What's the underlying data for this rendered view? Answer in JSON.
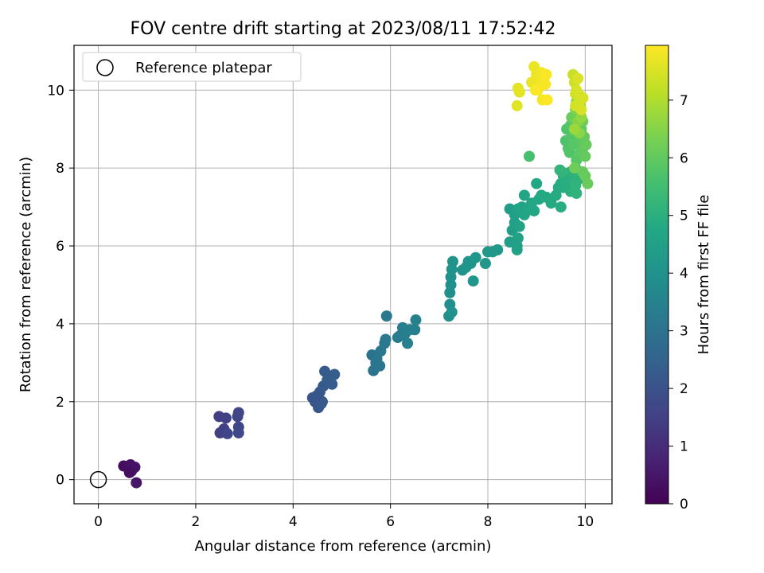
{
  "chart_data": {
    "type": "scatter",
    "title": "FOV centre drift starting at 2023/08/11 17:52:42",
    "xlabel": "Angular distance from reference (arcmin)",
    "ylabel": "Rotation from reference (arcmin)",
    "xlim": [
      -0.5,
      10.55
    ],
    "ylim": [
      -0.62,
      11.15
    ],
    "xticks": [
      0,
      2,
      4,
      6,
      8,
      10
    ],
    "yticks": [
      0,
      2,
      4,
      6,
      8,
      10
    ],
    "grid": true,
    "legend": {
      "placement": "top-left",
      "entries": [
        "Reference platepar"
      ]
    },
    "reference_point": {
      "x": 0,
      "y": 0
    },
    "colorbar": {
      "label": "Hours from first FF file",
      "colormap": "viridis",
      "range": [
        0,
        7.95
      ],
      "ticks": [
        0,
        1,
        2,
        3,
        4,
        5,
        6,
        7
      ]
    },
    "points": [
      [
        0.52,
        0.35,
        0.25
      ],
      [
        0.58,
        0.33,
        0.28
      ],
      [
        0.62,
        0.3,
        0.32
      ],
      [
        0.66,
        0.38,
        0.35
      ],
      [
        0.68,
        0.22,
        0.38
      ],
      [
        0.7,
        0.28,
        0.4
      ],
      [
        0.75,
        0.32,
        0.42
      ],
      [
        0.78,
        -0.08,
        0.45
      ],
      [
        0.64,
        0.18,
        0.3
      ],
      [
        2.48,
        1.62,
        1.45
      ],
      [
        2.5,
        1.2,
        1.5
      ],
      [
        2.58,
        1.3,
        1.52
      ],
      [
        2.62,
        1.58,
        1.55
      ],
      [
        2.65,
        1.18,
        1.58
      ],
      [
        2.86,
        1.62,
        1.62
      ],
      [
        2.88,
        1.72,
        1.65
      ],
      [
        2.88,
        1.35,
        1.68
      ],
      [
        2.88,
        1.2,
        1.7
      ],
      [
        4.4,
        2.1,
        2.05
      ],
      [
        4.45,
        2.0,
        2.08
      ],
      [
        4.5,
        2.05,
        2.1
      ],
      [
        4.52,
        1.85,
        2.12
      ],
      [
        4.55,
        2.25,
        2.15
      ],
      [
        4.58,
        1.95,
        2.18
      ],
      [
        4.6,
        2.0,
        2.2
      ],
      [
        4.62,
        2.4,
        2.22
      ],
      [
        4.65,
        2.78,
        2.25
      ],
      [
        4.7,
        2.55,
        2.28
      ],
      [
        4.75,
        2.65,
        2.3
      ],
      [
        4.8,
        2.45,
        2.32
      ],
      [
        4.85,
        2.7,
        2.35
      ],
      [
        4.48,
        2.15,
        2.12
      ],
      [
        5.62,
        3.2,
        3.0
      ],
      [
        5.65,
        2.8,
        3.05
      ],
      [
        5.7,
        3.0,
        3.08
      ],
      [
        5.72,
        3.1,
        3.1
      ],
      [
        5.78,
        2.92,
        3.12
      ],
      [
        5.8,
        3.3,
        3.15
      ],
      [
        5.88,
        3.5,
        3.18
      ],
      [
        5.9,
        3.6,
        3.2
      ],
      [
        5.92,
        4.2,
        3.22
      ],
      [
        6.15,
        3.65,
        3.3
      ],
      [
        6.2,
        3.7,
        3.32
      ],
      [
        6.25,
        3.9,
        3.35
      ],
      [
        6.3,
        3.75,
        3.38
      ],
      [
        6.35,
        3.5,
        3.4
      ],
      [
        6.4,
        3.85,
        3.42
      ],
      [
        6.5,
        3.85,
        3.45
      ],
      [
        6.52,
        4.1,
        3.48
      ],
      [
        7.2,
        4.2,
        3.9
      ],
      [
        7.22,
        4.5,
        3.92
      ],
      [
        7.22,
        4.8,
        3.94
      ],
      [
        7.24,
        5.0,
        3.96
      ],
      [
        7.24,
        5.2,
        3.98
      ],
      [
        7.26,
        4.3,
        4.0
      ],
      [
        7.26,
        5.4,
        4.02
      ],
      [
        7.28,
        5.6,
        4.04
      ],
      [
        7.48,
        5.38,
        4.06
      ],
      [
        7.55,
        5.45,
        4.08
      ],
      [
        7.6,
        5.6,
        4.1
      ],
      [
        7.65,
        5.55,
        4.12
      ],
      [
        7.7,
        5.1,
        4.14
      ],
      [
        7.75,
        5.7,
        4.16
      ],
      [
        7.95,
        5.55,
        4.18
      ],
      [
        8.0,
        5.85,
        4.2
      ],
      [
        8.1,
        5.85,
        4.22
      ],
      [
        8.2,
        5.9,
        4.24
      ],
      [
        8.45,
        6.95,
        4.4
      ],
      [
        8.45,
        6.1,
        4.42
      ],
      [
        8.5,
        6.4,
        4.44
      ],
      [
        8.55,
        6.6,
        4.46
      ],
      [
        8.55,
        6.8,
        4.48
      ],
      [
        8.6,
        6.0,
        4.5
      ],
      [
        8.6,
        5.9,
        4.52
      ],
      [
        8.62,
        6.2,
        4.54
      ],
      [
        8.62,
        6.95,
        4.56
      ],
      [
        8.65,
        6.5,
        4.58
      ],
      [
        8.7,
        7.0,
        4.6
      ],
      [
        8.75,
        6.8,
        4.62
      ],
      [
        8.75,
        7.3,
        4.64
      ],
      [
        8.8,
        6.9,
        4.66
      ],
      [
        8.85,
        7.0,
        4.68
      ],
      [
        8.9,
        7.1,
        4.7
      ],
      [
        8.95,
        6.9,
        4.72
      ],
      [
        9.0,
        7.6,
        4.74
      ],
      [
        9.05,
        7.2,
        4.76
      ],
      [
        9.1,
        7.3,
        4.78
      ],
      [
        9.2,
        7.25,
        4.8
      ],
      [
        9.3,
        7.1,
        4.82
      ],
      [
        9.4,
        7.3,
        4.84
      ],
      [
        9.45,
        7.5,
        4.86
      ],
      [
        9.5,
        7.6,
        4.88
      ],
      [
        9.5,
        7.0,
        4.9
      ],
      [
        9.55,
        7.8,
        4.92
      ],
      [
        9.55,
        7.5,
        4.94
      ],
      [
        9.6,
        7.7,
        4.96
      ],
      [
        9.65,
        7.6,
        4.98
      ],
      [
        9.7,
        7.4,
        5.0
      ],
      [
        9.7,
        7.9,
        5.02
      ],
      [
        9.75,
        7.8,
        5.04
      ],
      [
        9.78,
        7.6,
        5.06
      ],
      [
        9.8,
        8.0,
        5.08
      ],
      [
        9.82,
        7.35,
        5.1
      ],
      [
        9.85,
        7.7,
        5.12
      ],
      [
        9.8,
        7.55,
        5.14
      ],
      [
        9.48,
        7.95,
        5.16
      ],
      [
        9.52,
        7.9,
        5.18
      ],
      [
        8.85,
        8.3,
        5.6
      ],
      [
        9.6,
        8.7,
        5.7
      ],
      [
        9.62,
        9.0,
        5.72
      ],
      [
        9.65,
        8.5,
        5.74
      ],
      [
        9.68,
        8.4,
        5.76
      ],
      [
        9.7,
        9.1,
        5.78
      ],
      [
        9.72,
        8.8,
        5.8
      ],
      [
        9.75,
        8.6,
        5.82
      ],
      [
        9.78,
        9.2,
        5.84
      ],
      [
        9.8,
        8.9,
        5.86
      ],
      [
        9.82,
        8.2,
        5.88
      ],
      [
        9.85,
        9.3,
        5.9
      ],
      [
        9.88,
        8.7,
        5.92
      ],
      [
        9.9,
        8.4,
        5.94
      ],
      [
        9.92,
        9.0,
        5.96
      ],
      [
        9.95,
        8.5,
        5.98
      ],
      [
        9.95,
        7.9,
        6.0
      ],
      [
        9.98,
        8.8,
        6.02
      ],
      [
        10.0,
        8.3,
        6.04
      ],
      [
        10.0,
        7.8,
        6.06
      ],
      [
        10.02,
        8.6,
        6.08
      ],
      [
        10.05,
        7.6,
        6.1
      ],
      [
        9.72,
        9.3,
        6.12
      ],
      [
        9.88,
        9.4,
        6.14
      ],
      [
        9.95,
        9.2,
        6.16
      ],
      [
        9.78,
        8.0,
        6.18
      ],
      [
        9.8,
        9.5,
        6.4
      ],
      [
        9.82,
        9.7,
        6.45
      ],
      [
        9.85,
        9.2,
        6.5
      ],
      [
        9.88,
        8.9,
        6.55
      ],
      [
        9.9,
        9.6,
        6.6
      ],
      [
        9.92,
        9.3,
        6.65
      ],
      [
        9.95,
        9.8,
        6.7
      ],
      [
        9.78,
        9.0,
        6.75
      ],
      [
        9.75,
        10.4,
        7.3
      ],
      [
        9.78,
        10.2,
        7.35
      ],
      [
        9.8,
        9.9,
        7.4
      ],
      [
        9.82,
        10.0,
        7.45
      ],
      [
        9.85,
        10.3,
        7.5
      ],
      [
        9.8,
        9.6,
        7.4
      ],
      [
        9.88,
        9.7,
        7.42
      ],
      [
        9.9,
        9.85,
        7.44
      ],
      [
        9.92,
        9.5,
        7.46
      ],
      [
        9.95,
        9.8,
        7.48
      ],
      [
        8.6,
        9.6,
        7.6
      ],
      [
        8.62,
        10.05,
        7.62
      ],
      [
        8.65,
        9.95,
        7.64
      ],
      [
        8.9,
        10.2,
        7.7
      ],
      [
        8.95,
        10.6,
        7.72
      ],
      [
        9.0,
        10.4,
        7.74
      ],
      [
        9.02,
        10.0,
        7.76
      ],
      [
        9.05,
        10.3,
        7.78
      ],
      [
        9.08,
        10.1,
        7.8
      ],
      [
        9.1,
        10.45,
        7.82
      ],
      [
        9.12,
        9.75,
        7.84
      ],
      [
        9.15,
        10.3,
        7.86
      ],
      [
        9.18,
        10.15,
        7.88
      ],
      [
        9.2,
        10.4,
        7.9
      ],
      [
        9.22,
        9.75,
        7.92
      ],
      [
        8.98,
        10.0,
        7.94
      ]
    ]
  }
}
